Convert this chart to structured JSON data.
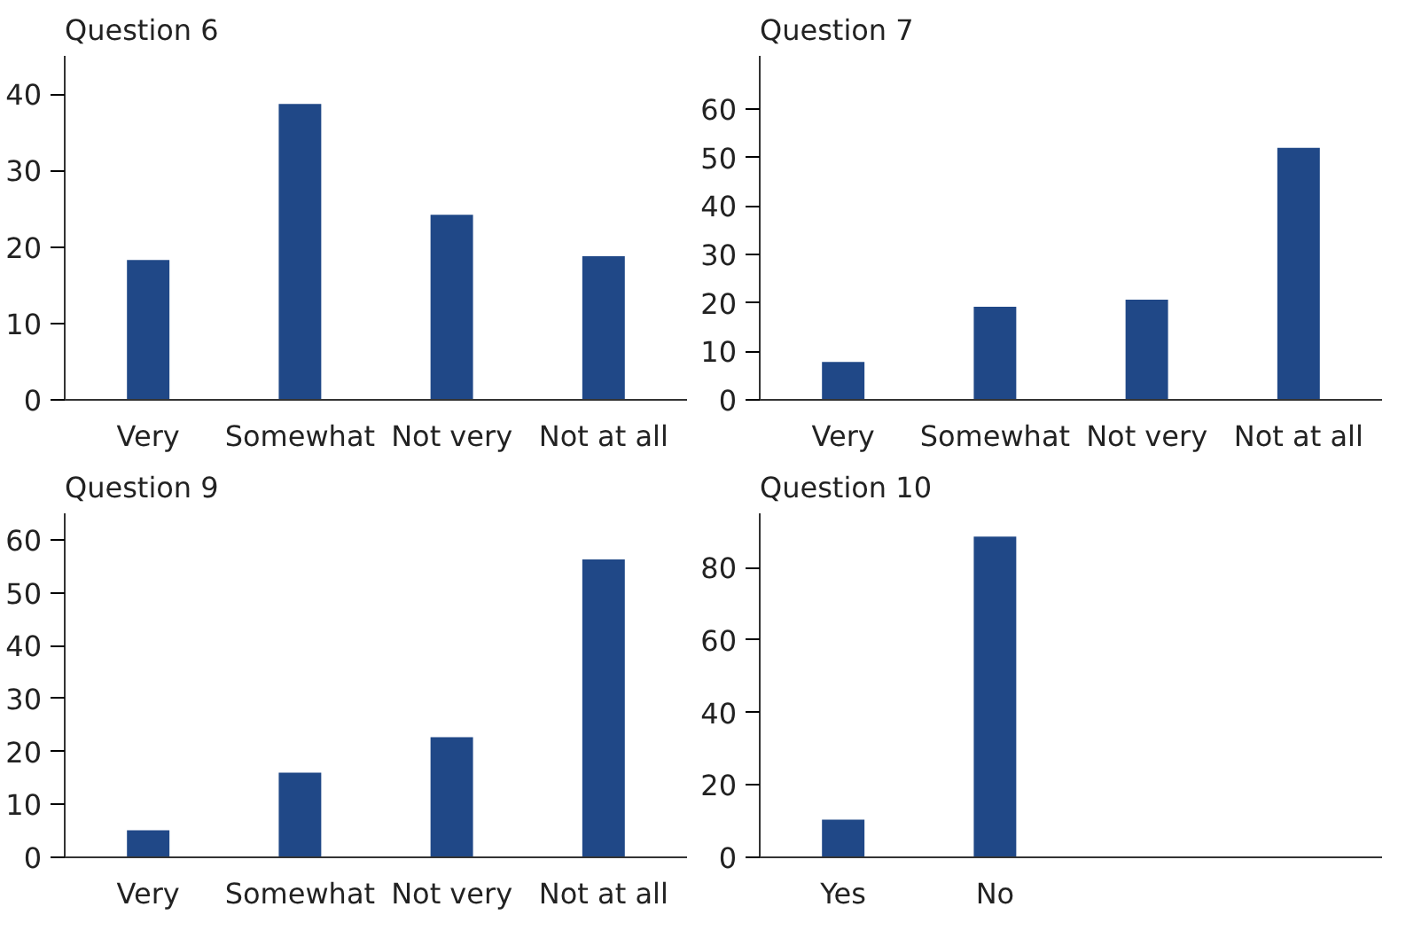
{
  "chart_data": [
    {
      "type": "bar",
      "title": "Question 6",
      "categories": [
        "Very",
        "Somewhat",
        "Not very",
        "Not at all"
      ],
      "values": [
        18.3,
        38.7,
        24.2,
        18.8
      ],
      "color": "#204887",
      "ylim": [
        0,
        45
      ],
      "yticks": [
        0,
        10,
        20,
        30,
        40
      ],
      "grid": false
    },
    {
      "type": "bar",
      "title": "Question 7",
      "categories": [
        "Very",
        "Somewhat",
        "Not very",
        "Not at all"
      ],
      "values": [
        7.8,
        19.2,
        20.7,
        52.0
      ],
      "color": "#204887",
      "ylim": [
        0,
        71
      ],
      "yticks": [
        0,
        10,
        20,
        30,
        40,
        50,
        60
      ],
      "grid": false
    },
    {
      "type": "bar",
      "title": "Question 9",
      "categories": [
        "Very",
        "Somewhat",
        "Not very",
        "Not at all"
      ],
      "values": [
        5.1,
        16.0,
        22.7,
        56.3
      ],
      "color": "#204887",
      "ylim": [
        0,
        65
      ],
      "yticks": [
        0,
        10,
        20,
        30,
        40,
        50,
        60
      ],
      "grid": false
    },
    {
      "type": "bar",
      "title": "Question 10",
      "categories": [
        "Yes",
        "No"
      ],
      "values": [
        10.4,
        88.6
      ],
      "color": "#204887",
      "ylim": [
        0,
        95
      ],
      "yticks": [
        0,
        20,
        40,
        60,
        80
      ],
      "grid": false
    }
  ]
}
